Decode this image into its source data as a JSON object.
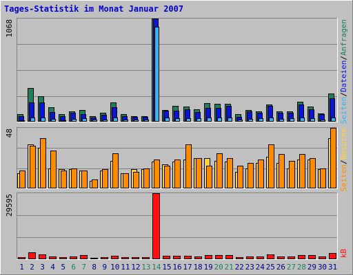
{
  "title": "Tages-Statistik im Monat Januar 2007",
  "colors": {
    "background": "#c0c0c0",
    "panel": "#c0c0c0",
    "grid": "#808080",
    "title": "#0000cc",
    "anfragen": "#1e7f5a",
    "dateien": "#0a14d8",
    "seiten": "#38b4f0",
    "besuche": "#ffd23c",
    "rechner": "#ff8c00",
    "kb": "#ff1010",
    "weekend_label": "#208060",
    "weekday_label": "#000080"
  },
  "legend": {
    "top": [
      {
        "text": "Seiten",
        "color": "#38b4f0"
      },
      {
        "text": "/",
        "color": "#000000"
      },
      {
        "text": "Dateien",
        "color": "#0a14d8"
      },
      {
        "text": "/",
        "color": "#000000"
      },
      {
        "text": "Anfragen",
        "color": "#1e7f5a"
      }
    ],
    "middle": [
      {
        "text": "Seiten",
        "color": "#ff8c00"
      },
      {
        "text": "/",
        "color": "#000000"
      },
      {
        "text": "Besuche",
        "color": "#ffd23c"
      }
    ],
    "bottom": [
      {
        "text": "kB",
        "color": "#ff1010"
      }
    ]
  },
  "chart_data": [
    {
      "type": "bar",
      "panel": "top",
      "ymax_label": "1068",
      "ylim": [
        0,
        1068
      ],
      "categories": [
        "1",
        "2",
        "3",
        "4",
        "5",
        "6",
        "7",
        "8",
        "9",
        "10",
        "11",
        "12",
        "13",
        "14",
        "15",
        "16",
        "17",
        "18",
        "19",
        "20",
        "21",
        "22",
        "23",
        "24",
        "25",
        "26",
        "27",
        "28",
        "29",
        "30",
        "31"
      ],
      "weekend_days": [
        6,
        7,
        13,
        14,
        20,
        21,
        27,
        28
      ],
      "series": [
        {
          "name": "Anfragen",
          "values": [
            80,
            350,
            260,
            150,
            80,
            110,
            120,
            60,
            90,
            200,
            80,
            60,
            60,
            1068,
            120,
            165,
            160,
            125,
            195,
            185,
            185,
            75,
            120,
            110,
            175,
            110,
            110,
            210,
            155,
            85,
            295
          ]
        },
        {
          "name": "Dateien",
          "values": [
            60,
            200,
            200,
            100,
            55,
            95,
            80,
            40,
            70,
            150,
            60,
            50,
            50,
            1068,
            115,
            115,
            125,
            100,
            140,
            140,
            165,
            50,
            110,
            95,
            165,
            95,
            90,
            175,
            125,
            80,
            245
          ]
        },
        {
          "name": "Seiten",
          "values": [
            15,
            40,
            40,
            30,
            12,
            30,
            35,
            20,
            20,
            40,
            20,
            20,
            20,
            985,
            40,
            35,
            35,
            35,
            40,
            40,
            40,
            20,
            30,
            35,
            45,
            30,
            35,
            40,
            35,
            20,
            40
          ]
        }
      ]
    },
    {
      "type": "bar",
      "panel": "middle",
      "ymax_label": "48",
      "ylim": [
        0,
        48
      ],
      "categories": [
        "1",
        "2",
        "3",
        "4",
        "5",
        "6",
        "7",
        "8",
        "9",
        "10",
        "11",
        "12",
        "13",
        "14",
        "15",
        "16",
        "17",
        "18",
        "19",
        "20",
        "21",
        "22",
        "23",
        "24",
        "25",
        "26",
        "27",
        "28",
        "29",
        "30",
        "31"
      ],
      "series": [
        {
          "name": "Besuche",
          "values": [
            12,
            35,
            32,
            16,
            15,
            15,
            14,
            6,
            14,
            22,
            12,
            15,
            15,
            21,
            19,
            21,
            23,
            24,
            24,
            22,
            21,
            13,
            16,
            20,
            25,
            20,
            16,
            23,
            23,
            15,
            40
          ]
        },
        {
          "name": "Seiten",
          "values": [
            14,
            34,
            40,
            30,
            14,
            16,
            14,
            7,
            15,
            28,
            12,
            13,
            16,
            23,
            18,
            23,
            35,
            24,
            18,
            28,
            24,
            18,
            20,
            23,
            35,
            27,
            22,
            27,
            24,
            16,
            48
          ]
        }
      ]
    },
    {
      "type": "bar",
      "panel": "bottom",
      "ymax_label": "29595",
      "ylim": [
        0,
        29595
      ],
      "categories": [
        "1",
        "2",
        "3",
        "4",
        "5",
        "6",
        "7",
        "8",
        "9",
        "10",
        "11",
        "12",
        "13",
        "14",
        "15",
        "16",
        "17",
        "18",
        "19",
        "20",
        "21",
        "22",
        "23",
        "24",
        "25",
        "26",
        "27",
        "28",
        "29",
        "30",
        "31"
      ],
      "series": [
        {
          "name": "kB",
          "values": [
            900,
            3100,
            2300,
            1100,
            900,
            1300,
            1800,
            600,
            900,
            1500,
            900,
            900,
            900,
            29595,
            1500,
            1500,
            1500,
            1300,
            1800,
            1800,
            1800,
            800,
            1300,
            1300,
            2100,
            1300,
            1300,
            2000,
            1700,
            1100,
            2900
          ]
        }
      ]
    }
  ]
}
